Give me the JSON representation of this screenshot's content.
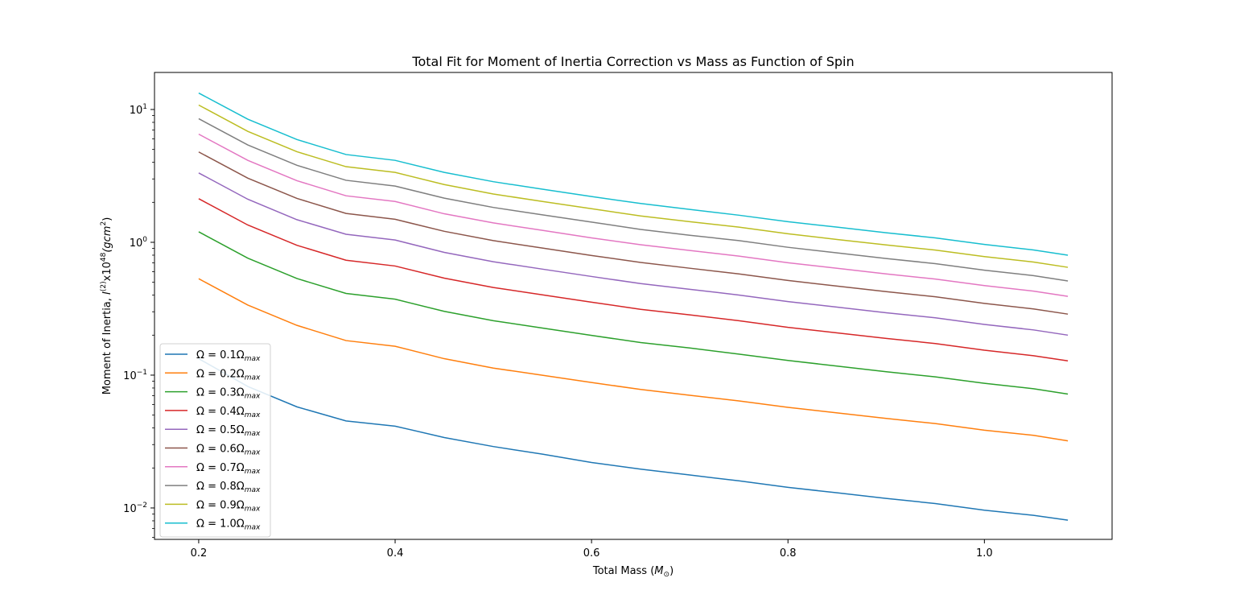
{
  "chart_data": {
    "type": "line",
    "title": "Total Fit for Moment of Inertia Correction vs Mass as Function of Spin",
    "xlabel": {
      "prefix": "Total Mass (",
      "symbol": "M",
      "subscript": "⊙",
      "suffix": ")"
    },
    "ylabel": {
      "prefix": "Moment of Inertia, ",
      "symbol": "I",
      "superscript": "(2)",
      "middle": "x10",
      "exponent": "48",
      "unit": "(gcm",
      "unit_exp": "2",
      "unit_close": ")"
    },
    "x_scale": "linear",
    "y_scale": "log",
    "xlim": [
      0.155,
      1.13
    ],
    "ylim": [
      0.0058,
      19
    ],
    "x_ticks": [
      0.2,
      0.4,
      0.6,
      0.8,
      1.0
    ],
    "x_tick_labels": [
      "0.2",
      "0.4",
      "0.6",
      "0.8",
      "1.0"
    ],
    "y_ticks": [
      0.01,
      0.1,
      1,
      10
    ],
    "y_tick_labels": [
      {
        "base": "10",
        "exp": "−2"
      },
      {
        "base": "10",
        "exp": "−1"
      },
      {
        "base": "10",
        "exp": "0"
      },
      {
        "base": "10",
        "exp": "1"
      }
    ],
    "grid": false,
    "legend_position": "lower-left",
    "x": [
      0.2,
      0.25,
      0.3,
      0.35,
      0.4,
      0.45,
      0.5,
      0.55,
      0.6,
      0.65,
      0.7,
      0.75,
      0.8,
      0.85,
      0.9,
      0.95,
      1.0,
      1.05,
      1.085
    ],
    "series": [
      {
        "name": "Ω = 0.1Ω",
        "subscript": "max",
        "color": "#1f77b4",
        "values": [
          0.133,
          0.0822,
          0.0577,
          0.0452,
          0.0413,
          0.0339,
          0.029,
          0.0254,
          0.022,
          0.0196,
          0.0177,
          0.016,
          0.0143,
          0.013,
          0.0118,
          0.0108,
          0.00962,
          0.0088,
          0.0081
        ]
      },
      {
        "name": "Ω = 0.2Ω",
        "subscript": "max",
        "color": "#ff7f0e",
        "values": [
          0.532,
          0.337,
          0.237,
          0.182,
          0.165,
          0.133,
          0.113,
          0.0998,
          0.088,
          0.078,
          0.0705,
          0.064,
          0.0572,
          0.052,
          0.0472,
          0.0432,
          0.0385,
          0.0352,
          0.032
        ]
      },
      {
        "name": "Ω = 0.3Ω",
        "subscript": "max",
        "color": "#2ca02c",
        "values": [
          1.2,
          0.76,
          0.534,
          0.412,
          0.373,
          0.302,
          0.257,
          0.226,
          0.199,
          0.176,
          0.16,
          0.144,
          0.129,
          0.117,
          0.106,
          0.097,
          0.0868,
          0.079,
          0.072
        ]
      },
      {
        "name": "Ω = 0.4Ω",
        "subscript": "max",
        "color": "#d62728",
        "values": [
          2.13,
          1.35,
          0.95,
          0.733,
          0.663,
          0.537,
          0.457,
          0.402,
          0.354,
          0.313,
          0.284,
          0.257,
          0.229,
          0.208,
          0.189,
          0.173,
          0.154,
          0.14,
          0.128
        ]
      },
      {
        "name": "Ω = 0.5Ω",
        "subscript": "max",
        "color": "#9467bd",
        "values": [
          3.33,
          2.11,
          1.48,
          1.15,
          1.04,
          0.84,
          0.714,
          0.628,
          0.553,
          0.489,
          0.443,
          0.401,
          0.358,
          0.325,
          0.295,
          0.27,
          0.241,
          0.219,
          0.2
        ]
      },
      {
        "name": "Ω = 0.6Ω",
        "subscript": "max",
        "color": "#8c564b",
        "values": [
          4.79,
          3.04,
          2.14,
          1.65,
          1.49,
          1.21,
          1.03,
          0.905,
          0.796,
          0.705,
          0.638,
          0.578,
          0.516,
          0.468,
          0.425,
          0.389,
          0.347,
          0.315,
          0.288
        ]
      },
      {
        "name": "Ω = 0.7Ω",
        "subscript": "max",
        "color": "#e377c2",
        "values": [
          6.52,
          4.14,
          2.91,
          2.24,
          2.03,
          1.64,
          1.4,
          1.23,
          1.08,
          0.959,
          0.868,
          0.787,
          0.702,
          0.637,
          0.578,
          0.529,
          0.472,
          0.429,
          0.392
        ]
      },
      {
        "name": "Ω = 0.8Ω",
        "subscript": "max",
        "color": "#7f7f7f",
        "values": [
          8.52,
          5.41,
          3.8,
          2.93,
          2.65,
          2.15,
          1.83,
          1.61,
          1.42,
          1.25,
          1.13,
          1.03,
          0.917,
          0.832,
          0.755,
          0.691,
          0.617,
          0.561,
          0.512
        ]
      },
      {
        "name": "Ω = 0.9Ω",
        "subscript": "max",
        "color": "#bcbd22",
        "values": [
          10.8,
          6.84,
          4.81,
          3.71,
          3.36,
          2.72,
          2.31,
          2.03,
          1.79,
          1.58,
          1.43,
          1.3,
          1.16,
          1.05,
          0.955,
          0.874,
          0.781,
          0.71,
          0.648
        ]
      },
      {
        "name": "Ω = 1.0Ω",
        "subscript": "max",
        "color": "#17becf",
        "values": [
          13.3,
          8.45,
          5.94,
          4.58,
          4.14,
          3.36,
          2.86,
          2.51,
          2.21,
          1.96,
          1.77,
          1.6,
          1.43,
          1.3,
          1.18,
          1.08,
          0.964,
          0.876,
          0.8
        ]
      }
    ]
  }
}
